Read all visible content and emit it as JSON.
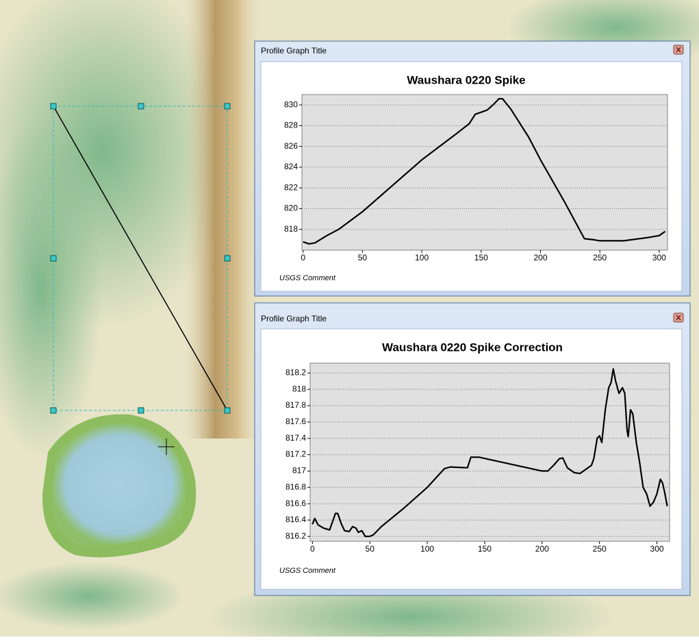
{
  "windows": [
    {
      "title_bar": "Profile Graph Title",
      "chart_data": {
        "type": "line",
        "title": "Waushara 0220 Spike",
        "comment": "USGS Comment",
        "x": [
          0,
          5,
          10,
          20,
          30,
          50,
          100,
          130,
          140,
          145,
          155,
          160,
          165,
          168,
          175,
          190,
          200,
          220,
          237,
          245,
          250,
          270,
          290,
          300,
          305
        ],
        "series": [
          {
            "color": "#000000",
            "values": [
              816.8,
              816.6,
              816.7,
              817.4,
              818,
              819.7,
              824.7,
              827.3,
              828.2,
              829.1,
              829.5,
              830,
              830.6,
              830.6,
              829.6,
              826.9,
              824.7,
              820.7,
              817.1,
              817,
              816.9,
              816.9,
              817.2,
              817.4,
              817.8
            ]
          }
        ],
        "xlim": [
          -1,
          307
        ],
        "xticks": [
          0,
          50,
          100,
          150,
          200,
          250,
          300
        ],
        "ylim": [
          816,
          831
        ],
        "yticks": [
          818,
          820,
          822,
          824,
          826,
          828,
          830
        ],
        "grid": true
      }
    },
    {
      "title_bar": "Profile Graph Title",
      "chart_data": {
        "type": "line",
        "title": "Waushara 0220 Spike Correction",
        "comment": "USGS Comment",
        "x": [
          0,
          2,
          5,
          10,
          15,
          20,
          22,
          25,
          28,
          32,
          35,
          38,
          40,
          43,
          46,
          50,
          53,
          60,
          80,
          100,
          115,
          120,
          135,
          138,
          145,
          200,
          205,
          210,
          215,
          218,
          222,
          228,
          233,
          238,
          243,
          245,
          248,
          250,
          252,
          255,
          258,
          260,
          262,
          264,
          267,
          270,
          272,
          274,
          275,
          277,
          279,
          282,
          285,
          288,
          291,
          294,
          297,
          300,
          303,
          305,
          307,
          309
        ],
        "series": [
          {
            "color": "#000000",
            "values": [
              816.35,
              816.42,
              816.34,
              816.3,
              816.28,
              816.48,
              816.48,
              816.36,
              816.27,
              816.26,
              816.32,
              816.3,
              816.25,
              816.27,
              816.2,
              816.2,
              816.22,
              816.32,
              816.55,
              816.8,
              817.03,
              817.05,
              817.04,
              817.17,
              817.17,
              817,
              817,
              817.07,
              817.15,
              817.16,
              817.04,
              816.98,
              816.97,
              817.02,
              817.07,
              817.15,
              817.4,
              817.43,
              817.35,
              817.75,
              818.02,
              818.08,
              818.25,
              818.1,
              817.95,
              818.02,
              817.95,
              817.5,
              817.42,
              817.75,
              817.7,
              817.35,
              817.1,
              816.8,
              816.72,
              816.57,
              816.62,
              816.72,
              816.9,
              816.85,
              816.72,
              816.57
            ]
          }
        ],
        "xlim": [
          -2,
          311
        ],
        "xticks": [
          0,
          50,
          100,
          150,
          200,
          250,
          300
        ],
        "ylim": [
          816.14,
          818.32
        ],
        "yticks": [
          816.2,
          816.4,
          816.6,
          816.8,
          817,
          817.2,
          817.4,
          817.6,
          817.8,
          818,
          818.2
        ],
        "grid": true
      }
    }
  ]
}
